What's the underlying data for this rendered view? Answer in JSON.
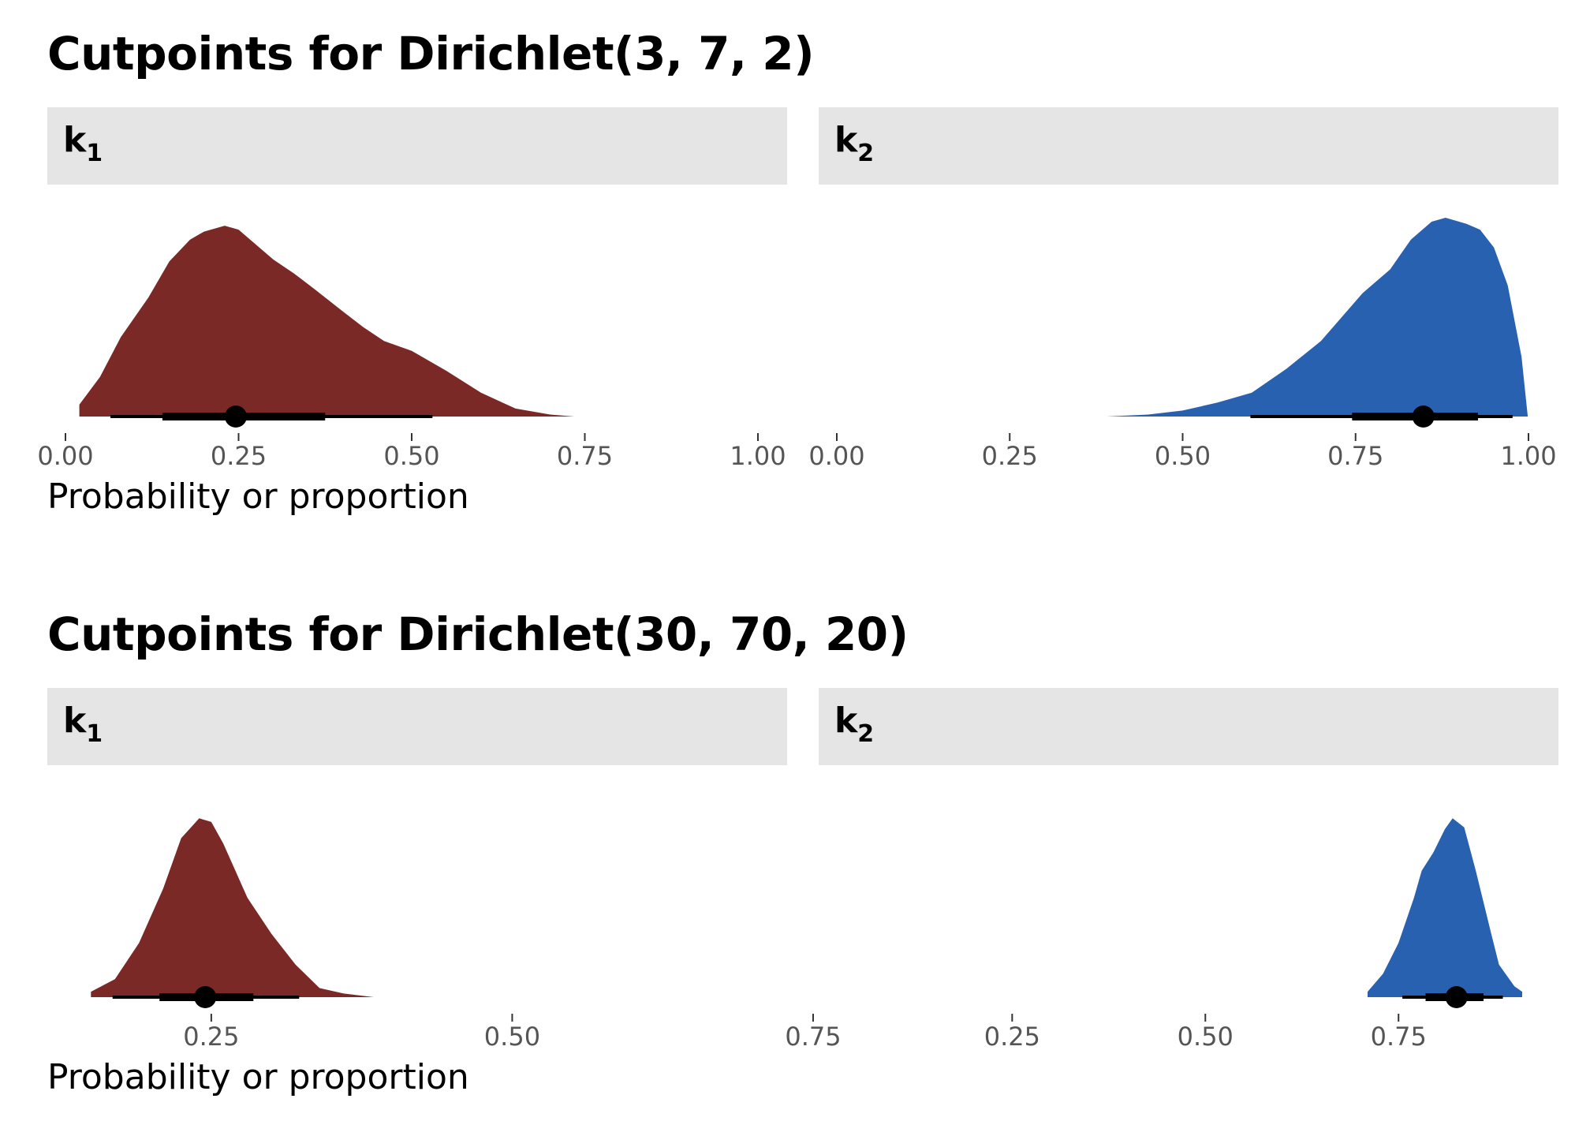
{
  "xlabel": "Probability or proportion",
  "colors": {
    "k1": "#7b2926",
    "k2": "#2861b0",
    "strip": "#e5e5e5"
  },
  "chart_data": [
    {
      "type": "density",
      "title": "Cutpoints for Dirichlet(3, 7, 2)",
      "xlabel": "Probability or proportion",
      "panels": [
        {
          "name": "k",
          "sub": "1",
          "color": "#7b2926",
          "xlim": [
            0.0,
            1.0
          ],
          "ticks": [
            0.0,
            0.25,
            0.5,
            0.75,
            1.0
          ],
          "tick_labels": [
            "0.00",
            "0.25",
            "0.50",
            "0.75",
            "1.00"
          ],
          "density": [
            [
              0.02,
              0.06
            ],
            [
              0.05,
              0.2
            ],
            [
              0.08,
              0.4
            ],
            [
              0.12,
              0.6
            ],
            [
              0.15,
              0.78
            ],
            [
              0.18,
              0.89
            ],
            [
              0.2,
              0.93
            ],
            [
              0.23,
              0.96
            ],
            [
              0.25,
              0.94
            ],
            [
              0.27,
              0.88
            ],
            [
              0.3,
              0.79
            ],
            [
              0.33,
              0.72
            ],
            [
              0.36,
              0.64
            ],
            [
              0.4,
              0.53
            ],
            [
              0.43,
              0.45
            ],
            [
              0.46,
              0.38
            ],
            [
              0.5,
              0.33
            ],
            [
              0.55,
              0.23
            ],
            [
              0.6,
              0.12
            ],
            [
              0.65,
              0.04
            ],
            [
              0.7,
              0.01
            ],
            [
              0.735,
              0.0
            ]
          ],
          "point": 0.246,
          "interval_66": [
            0.14,
            0.375
          ],
          "interval_95": [
            0.065,
            0.53
          ]
        },
        {
          "name": "k",
          "sub": "2",
          "color": "#2861b0",
          "xlim": [
            0.0,
            1.0
          ],
          "ticks": [
            0.0,
            0.25,
            0.5,
            0.75,
            1.0
          ],
          "tick_labels": [
            "0.00",
            "0.25",
            "0.50",
            "0.75",
            "1.00"
          ],
          "density": [
            [
              0.39,
              0.0
            ],
            [
              0.45,
              0.01
            ],
            [
              0.5,
              0.03
            ],
            [
              0.55,
              0.07
            ],
            [
              0.6,
              0.12
            ],
            [
              0.65,
              0.24
            ],
            [
              0.7,
              0.38
            ],
            [
              0.73,
              0.5
            ],
            [
              0.76,
              0.62
            ],
            [
              0.8,
              0.74
            ],
            [
              0.83,
              0.89
            ],
            [
              0.86,
              0.98
            ],
            [
              0.88,
              1.0
            ],
            [
              0.91,
              0.97
            ],
            [
              0.93,
              0.94
            ],
            [
              0.95,
              0.85
            ],
            [
              0.97,
              0.66
            ],
            [
              0.99,
              0.3
            ],
            [
              0.999,
              0.0
            ]
          ],
          "point": 0.848,
          "interval_66": [
            0.745,
            0.927
          ],
          "interval_95": [
            0.598,
            0.977
          ]
        }
      ]
    },
    {
      "type": "density",
      "title": "Cutpoints for Dirichlet(30, 70, 20)",
      "xlabel": "Probability or proportion",
      "panels": [
        {
          "name": "k",
          "sub": "1",
          "color": "#7b2926",
          "xlim": [
            0.14,
            0.98
          ],
          "ticks": [
            0.25,
            0.5,
            0.75
          ],
          "tick_labels": [
            "0.25",
            "0.50",
            "0.75"
          ],
          "density": [
            [
              0.15,
              0.03
            ],
            [
              0.17,
              0.1
            ],
            [
              0.19,
              0.3
            ],
            [
              0.21,
              0.6
            ],
            [
              0.225,
              0.88
            ],
            [
              0.24,
              0.99
            ],
            [
              0.25,
              0.97
            ],
            [
              0.26,
              0.85
            ],
            [
              0.28,
              0.55
            ],
            [
              0.3,
              0.35
            ],
            [
              0.32,
              0.18
            ],
            [
              0.34,
              0.05
            ],
            [
              0.36,
              0.02
            ],
            [
              0.385,
              0.0
            ]
          ],
          "point": 0.245,
          "interval_66": [
            0.207,
            0.285
          ],
          "interval_95": [
            0.168,
            0.323
          ]
        },
        {
          "name": "k",
          "sub": "2",
          "color": "#2861b0",
          "xlim": [
            0.02,
            0.91
          ],
          "ticks": [
            0.25,
            0.5,
            0.75
          ],
          "tick_labels": [
            "0.25",
            "0.50",
            "0.75"
          ],
          "density": [
            [
              0.71,
              0.03
            ],
            [
              0.73,
              0.13
            ],
            [
              0.75,
              0.3
            ],
            [
              0.77,
              0.55
            ],
            [
              0.78,
              0.7
            ],
            [
              0.795,
              0.8
            ],
            [
              0.81,
              0.93
            ],
            [
              0.82,
              0.99
            ],
            [
              0.835,
              0.94
            ],
            [
              0.85,
              0.7
            ],
            [
              0.87,
              0.35
            ],
            [
              0.88,
              0.18
            ],
            [
              0.9,
              0.06
            ],
            [
              0.91,
              0.03
            ]
          ],
          "point": 0.825,
          "interval_66": [
            0.785,
            0.86
          ],
          "interval_95": [
            0.755,
            0.885
          ]
        }
      ]
    }
  ]
}
